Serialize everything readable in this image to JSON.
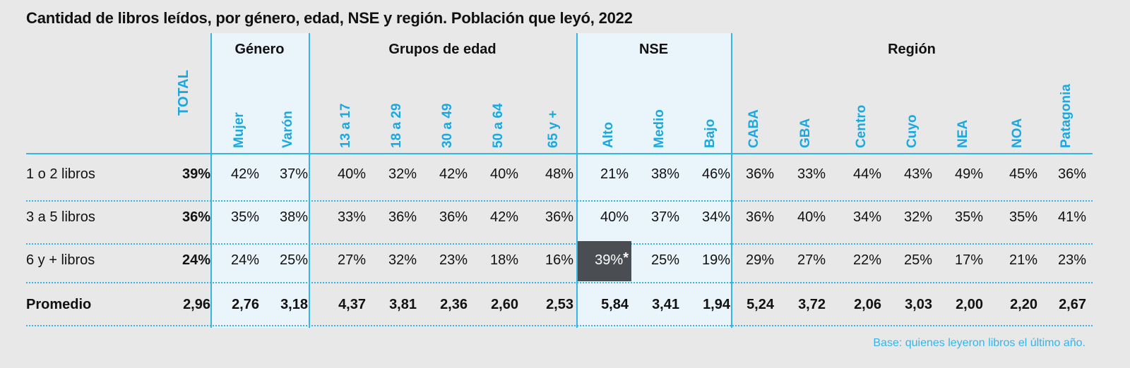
{
  "chart_data": {
    "type": "table",
    "title": "Cantidad de libros leídos, por género, edad, NSE y región. Población que leyó, 2022",
    "total_label": "TOTAL",
    "groups": [
      {
        "name": "Género",
        "columns": [
          "Mujer",
          "Varón"
        ]
      },
      {
        "name": "Grupos de edad",
        "columns": [
          "13 a 17",
          "18 a 29",
          "30 a 49",
          "50 a 64",
          "65 y +"
        ]
      },
      {
        "name": "NSE",
        "columns": [
          "Alto",
          "Medio",
          "Bajo"
        ]
      },
      {
        "name": "Región",
        "columns": [
          "CABA",
          "GBA",
          "Centro",
          "Cuyo",
          "NEA",
          "NOA",
          "Patagonia"
        ]
      }
    ],
    "rows": [
      {
        "label": "1 o 2 libros",
        "total": "39%",
        "values": [
          "42%",
          "37%",
          "40%",
          "32%",
          "42%",
          "40%",
          "48%",
          "21%",
          "38%",
          "46%",
          "36%",
          "33%",
          "44%",
          "43%",
          "49%",
          "45%",
          "36%"
        ]
      },
      {
        "label": "3 a 5 libros",
        "total": "36%",
        "values": [
          "35%",
          "38%",
          "33%",
          "36%",
          "36%",
          "42%",
          "36%",
          "40%",
          "37%",
          "34%",
          "36%",
          "40%",
          "34%",
          "32%",
          "35%",
          "35%",
          "41%"
        ]
      },
      {
        "label": "6 y + libros",
        "total": "24%",
        "values": [
          "24%",
          "25%",
          "27%",
          "32%",
          "23%",
          "18%",
          "16%",
          "39%",
          "25%",
          "19%",
          "29%",
          "27%",
          "22%",
          "25%",
          "17%",
          "21%",
          "23%"
        ]
      },
      {
        "label": "Promedio",
        "total": "2,96",
        "values": [
          "2,76",
          "3,18",
          "4,37",
          "3,81",
          "2,36",
          "2,60",
          "2,53",
          "5,84",
          "3,41",
          "1,94",
          "5,24",
          "3,72",
          "2,06",
          "3,03",
          "2,00",
          "2,20",
          "2,67"
        ]
      }
    ],
    "highlight": {
      "row": 2,
      "col": 7,
      "mark": "*"
    },
    "colors": {
      "accent": "#33b6e6",
      "header_text": "#1aa8de",
      "band": "#eaf4fb",
      "highlight_bg": "#4a4d52"
    }
  },
  "footnote": "Base: quienes leyeron libros el último año."
}
